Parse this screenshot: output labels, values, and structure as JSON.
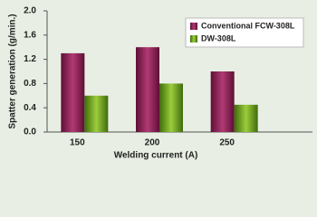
{
  "chart_data": {
    "type": "bar",
    "categories": [
      "150",
      "200",
      "250"
    ],
    "series": [
      {
        "name": "Conventional FCW-308L",
        "color": "#8c1d52",
        "values": [
          1.3,
          1.4,
          1.0
        ]
      },
      {
        "name": "DW-308L",
        "color": "#6b9b1f",
        "values": [
          0.6,
          0.8,
          0.45
        ]
      }
    ],
    "ylim": [
      0,
      2.0
    ],
    "yticks": [
      {
        "value": 0,
        "label": "0.0"
      },
      0.4,
      0.8,
      1.2,
      1.6,
      {
        "value": 2.0,
        "label": "2.0"
      }
    ],
    "ylabel": "Spatter generation (g/min.)",
    "xlabel": "Welding current (A)",
    "legend": "upper-right"
  }
}
